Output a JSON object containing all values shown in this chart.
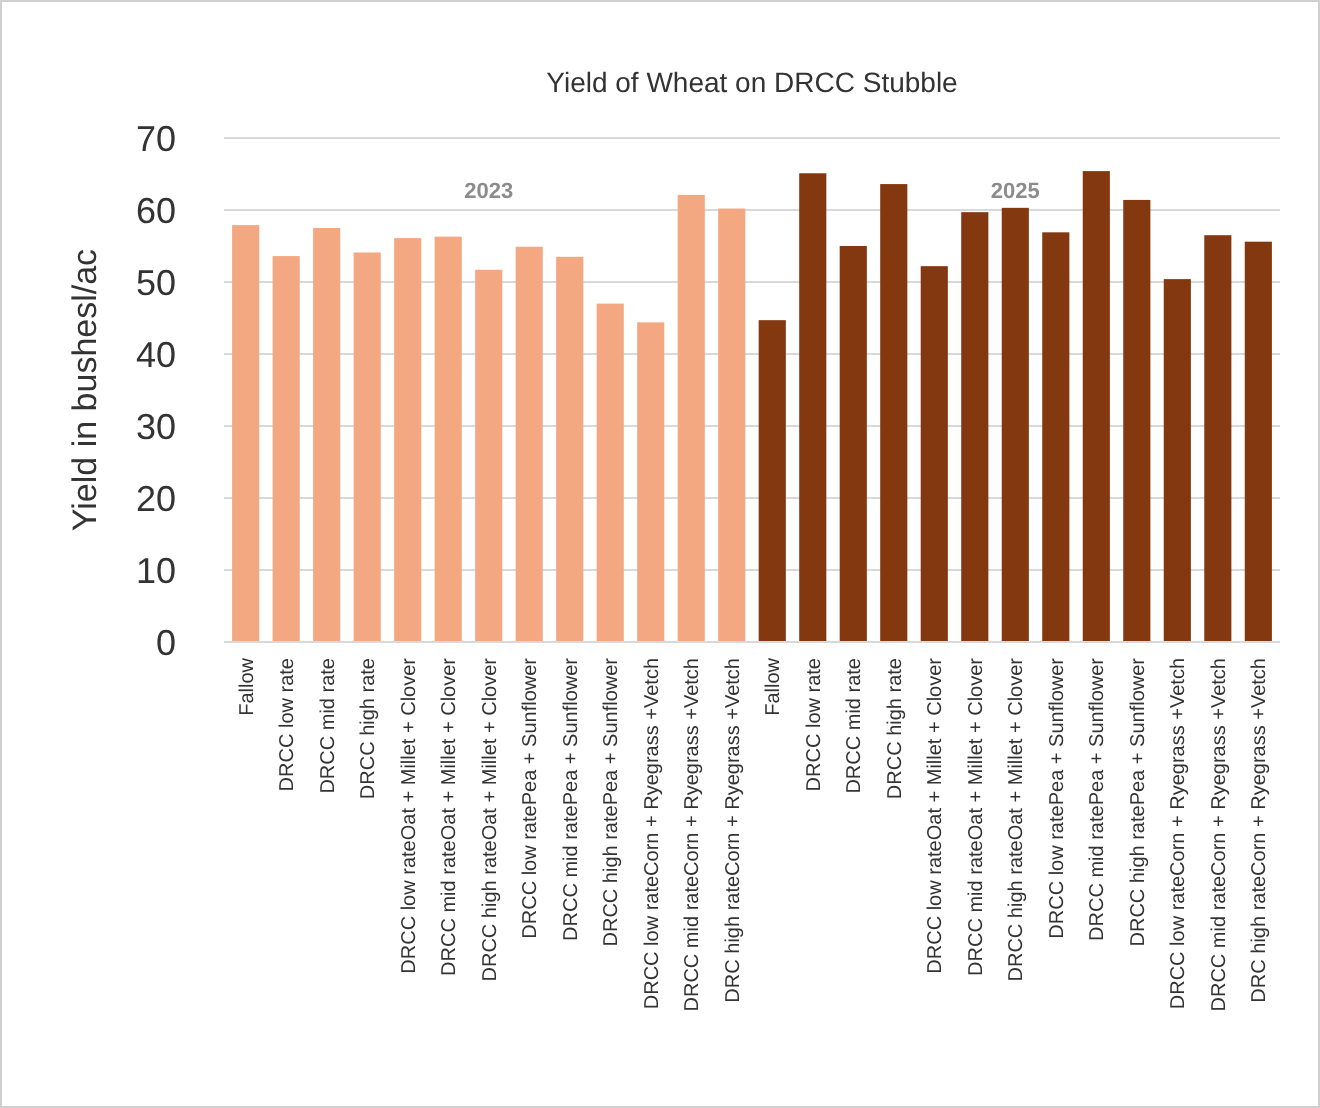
{
  "chart_data": {
    "type": "bar",
    "title": "Yield of Wheat on DRCC Stubble",
    "ylabel": "Yield in bushesl/ac",
    "categories": [
      "Fallow",
      "DRCC low rate",
      "DRCC mid rate",
      "DRCC high rate",
      "DRCC low rateOat + Millet + Clover",
      "DRCC mid rateOat + Millet + Clover",
      "DRCC high rateOat + Millet + Clover",
      "DRCC low ratePea + Sunflower",
      "DRCC mid ratePea + Sunflower",
      "DRCC high ratePea + Sunflower",
      "DRCC low rateCorn + Ryegrass +Vetch",
      "DRCC mid rateCorn + Ryegrass +Vetch",
      "DRC high rateCorn + Ryegrass +Vetch",
      "Fallow",
      "DRCC low rate",
      "DRCC mid rate",
      "DRCC high rate",
      "DRCC low rateOat + Millet + Clover",
      "DRCC mid rateOat + Millet + Clover",
      "DRCC high rateOat + Millet + Clover",
      "DRCC low ratePea + Sunflower",
      "DRCC mid ratePea + Sunflower",
      "DRCC high ratePea + Sunflower",
      "DRCC low rateCorn + Ryegrass +Vetch",
      "DRCC mid rateCorn + Ryegrass +Vetch",
      "DRC high rateCorn + Ryegrass +Vetch"
    ],
    "values": [
      57.9,
      53.6,
      57.5,
      54.1,
      56.1,
      56.3,
      51.7,
      54.9,
      53.5,
      47.0,
      44.4,
      62.1,
      60.2,
      44.7,
      65.1,
      55.0,
      63.6,
      52.2,
      59.7,
      60.3,
      56.9,
      65.4,
      61.4,
      50.4,
      56.5,
      55.6
    ],
    "colors": [
      "#f4a882",
      "#f4a882",
      "#f4a882",
      "#f4a882",
      "#f4a882",
      "#f4a882",
      "#f4a882",
      "#f4a882",
      "#f4a882",
      "#f4a882",
      "#f4a882",
      "#f4a882",
      "#f4a882",
      "#843810",
      "#843810",
      "#843810",
      "#843810",
      "#843810",
      "#843810",
      "#843810",
      "#843810",
      "#843810",
      "#843810",
      "#843810",
      "#843810",
      "#843810"
    ],
    "annotations": [
      "2023",
      "2025"
    ],
    "ylim": [
      0,
      70
    ],
    "yticks": [
      0,
      10,
      20,
      30,
      40,
      50,
      60,
      70
    ],
    "grid": "y"
  }
}
